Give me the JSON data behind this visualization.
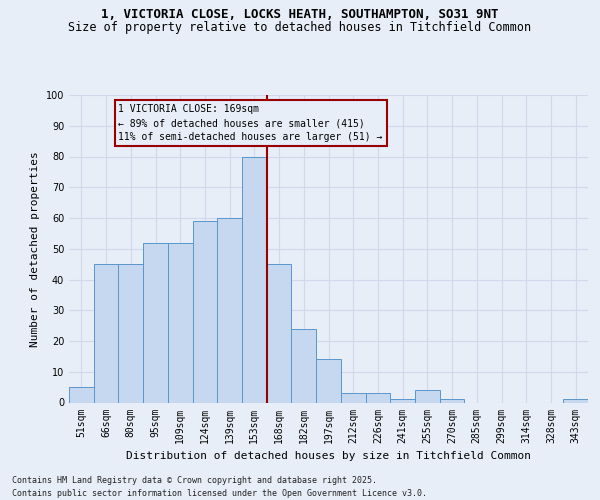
{
  "title_line1": "1, VICTORIA CLOSE, LOCKS HEATH, SOUTHAMPTON, SO31 9NT",
  "title_line2": "Size of property relative to detached houses in Titchfield Common",
  "xlabel": "Distribution of detached houses by size in Titchfield Common",
  "ylabel": "Number of detached properties",
  "footnote": "Contains HM Land Registry data © Crown copyright and database right 2025.\nContains public sector information licensed under the Open Government Licence v3.0.",
  "bin_labels": [
    "51sqm",
    "66sqm",
    "80sqm",
    "95sqm",
    "109sqm",
    "124sqm",
    "139sqm",
    "153sqm",
    "168sqm",
    "182sqm",
    "197sqm",
    "212sqm",
    "226sqm",
    "241sqm",
    "255sqm",
    "270sqm",
    "285sqm",
    "299sqm",
    "314sqm",
    "328sqm",
    "343sqm"
  ],
  "bar_values": [
    5,
    45,
    45,
    52,
    52,
    59,
    60,
    80,
    45,
    24,
    14,
    3,
    3,
    1,
    4,
    1,
    0,
    0,
    0,
    0,
    1
  ],
  "bar_color": "#c5d8f0",
  "bar_edge_color": "#5a96cc",
  "vline_pos": 7.5,
  "vline_color": "#990000",
  "annotation_text": "1 VICTORIA CLOSE: 169sqm\n← 89% of detached houses are smaller (415)\n11% of semi-detached houses are larger (51) →",
  "annotation_box_edgecolor": "#990000",
  "ylim": [
    0,
    100
  ],
  "yticks": [
    0,
    10,
    20,
    30,
    40,
    50,
    60,
    70,
    80,
    90,
    100
  ],
  "bg_color": "#e8eef8",
  "grid_color": "#d0d8ea",
  "title_fontsize": 9,
  "subtitle_fontsize": 8.5,
  "axis_label_fontsize": 8,
  "tick_fontsize": 7,
  "annotation_fontsize": 7,
  "footnote_fontsize": 6
}
